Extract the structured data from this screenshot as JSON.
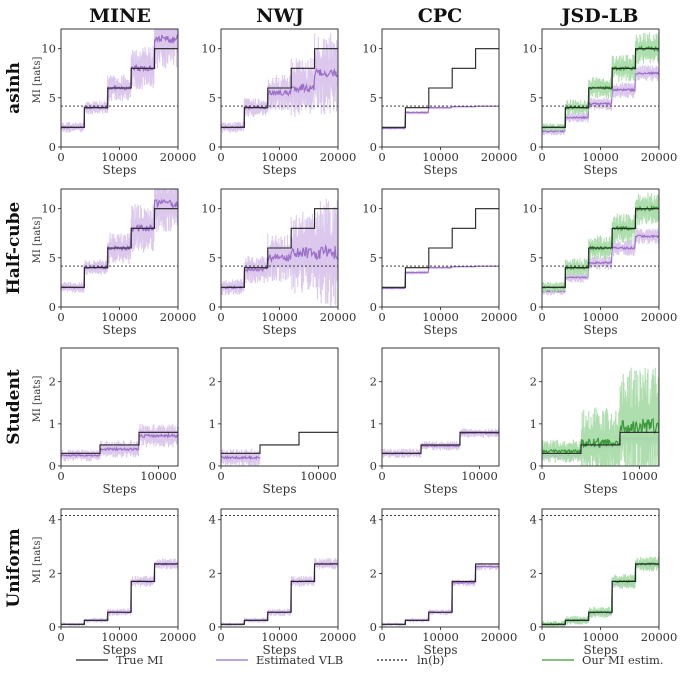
{
  "colors": {
    "true_mi": "#222222",
    "vlb": "#9b6fc7",
    "vlb_band": "#d9c4ec",
    "our": "#3a9a3a",
    "our_band": "#a9dca9",
    "ln_b": "#222222"
  },
  "columns": [
    "MINE",
    "NWJ",
    "CPC",
    "JSD-LB"
  ],
  "rows": [
    "asinh",
    "Half-cube",
    "Student",
    "Uniform"
  ],
  "legend": [
    {
      "key": "true_mi",
      "label": "True MI",
      "style": "solid"
    },
    {
      "key": "vlb",
      "label": "Estimated VLB",
      "style": "solid"
    },
    {
      "key": "ln_b",
      "label": "ln(b)",
      "style": "dashed"
    },
    {
      "key": "our",
      "label": "Our MI estim.",
      "style": "solid"
    }
  ],
  "chart_data": [
    {
      "row": "asinh",
      "type": "line",
      "xlabel": "Steps",
      "ylabel": "MI [nats]",
      "xlim": [
        0,
        20000
      ],
      "ylim": [
        0,
        12
      ],
      "xticks": [
        0,
        10000,
        20000
      ],
      "yticks": [
        0,
        5,
        10
      ],
      "true_mi_steps": [
        2,
        4,
        6,
        8,
        10
      ],
      "ln_b": 4.16,
      "panels": [
        {
          "column": "MINE",
          "vlb": [
            2.0,
            4.0,
            6.0,
            8.0,
            11.0
          ],
          "noise": [
            0.4,
            0.5,
            1.0,
            1.6,
            2.2
          ]
        },
        {
          "column": "NWJ",
          "vlb": [
            2.0,
            4.0,
            5.5,
            6.0,
            7.5
          ],
          "noise": [
            0.4,
            0.7,
            1.4,
            2.2,
            3.0
          ]
        },
        {
          "column": "CPC",
          "vlb": [
            1.9,
            3.5,
            4.0,
            4.1,
            4.15
          ],
          "noise": [
            0.1,
            0.15,
            0.1,
            0.05,
            0.05
          ]
        },
        {
          "column": "JSD-LB",
          "vlb": [
            1.6,
            3.0,
            4.4,
            5.8,
            7.5
          ],
          "noise": [
            0.3,
            0.4,
            0.5,
            0.6,
            0.6
          ],
          "our": [
            2.0,
            4.0,
            6.0,
            8.0,
            10.0
          ],
          "our_noise": [
            0.3,
            0.6,
            0.8,
            1.0,
            1.2
          ]
        }
      ]
    },
    {
      "row": "Half-cube",
      "type": "line",
      "xlabel": "Steps",
      "ylabel": "MI [nats]",
      "xlim": [
        0,
        20000
      ],
      "ylim": [
        0,
        12
      ],
      "xticks": [
        0,
        10000,
        20000
      ],
      "yticks": [
        0,
        5,
        10
      ],
      "true_mi_steps": [
        2,
        4,
        6,
        8,
        10
      ],
      "ln_b": 4.16,
      "panels": [
        {
          "column": "MINE",
          "vlb": [
            2.0,
            4.0,
            6.0,
            8.0,
            10.5
          ],
          "noise": [
            0.4,
            0.6,
            1.2,
            1.8,
            2.2
          ]
        },
        {
          "column": "NWJ",
          "vlb": [
            2.0,
            3.8,
            5.0,
            5.5,
            5.5
          ],
          "noise": [
            0.6,
            1.0,
            1.8,
            3.0,
            4.0
          ]
        },
        {
          "column": "CPC",
          "vlb": [
            1.9,
            3.5,
            4.0,
            4.1,
            4.15
          ],
          "noise": [
            0.1,
            0.15,
            0.1,
            0.05,
            0.05
          ]
        },
        {
          "column": "JSD-LB",
          "vlb": [
            1.6,
            3.0,
            4.5,
            6.0,
            7.2
          ],
          "noise": [
            0.3,
            0.4,
            0.5,
            0.6,
            0.6
          ],
          "our": [
            2.0,
            4.0,
            6.0,
            8.0,
            10.0
          ],
          "our_noise": [
            0.4,
            0.7,
            0.9,
            1.1,
            1.2
          ]
        }
      ]
    },
    {
      "row": "Student",
      "type": "line",
      "xlabel": "Steps",
      "ylabel": "MI [nats]",
      "xlim": [
        0,
        12000
      ],
      "ylim": [
        0,
        2.8
      ],
      "xticks": [
        0,
        10000
      ],
      "yticks": [
        0,
        1,
        2
      ],
      "true_mi_steps": [
        0.3,
        0.5,
        0.8
      ],
      "ln_b": null,
      "panels": [
        {
          "column": "MINE",
          "vlb": [
            0.25,
            0.4,
            0.72
          ],
          "noise": [
            0.1,
            0.15,
            0.2
          ]
        },
        {
          "column": "NWJ",
          "vlb": [
            0.2,
            null,
            null
          ],
          "noise": [
            0.15,
            0,
            0
          ]
        },
        {
          "column": "CPC",
          "vlb": [
            0.3,
            0.48,
            0.78
          ],
          "noise": [
            0.08,
            0.08,
            0.08
          ]
        },
        {
          "column": "JSD-LB",
          "vlb": [
            0.25,
            0.45,
            0.65
          ],
          "noise": [
            0.08,
            0.08,
            0.1
          ],
          "our": [
            0.35,
            0.55,
            0.95
          ],
          "our_noise": [
            0.2,
            0.6,
            1.0
          ]
        }
      ]
    },
    {
      "row": "Uniform",
      "type": "line",
      "xlabel": "Steps",
      "ylabel": "MI [nats]",
      "xlim": [
        0,
        20000
      ],
      "ylim": [
        0,
        4.4
      ],
      "xticks": [
        0,
        10000,
        20000
      ],
      "yticks": [
        0,
        2,
        4
      ],
      "true_mi_steps": [
        0.1,
        0.25,
        0.55,
        1.7,
        2.35
      ],
      "ln_b": 4.16,
      "panels": [
        {
          "column": "MINE",
          "vlb": [
            0.1,
            0.25,
            0.55,
            1.7,
            2.35
          ],
          "noise": [
            0.05,
            0.07,
            0.1,
            0.15,
            0.15
          ]
        },
        {
          "column": "NWJ",
          "vlb": [
            0.1,
            0.25,
            0.55,
            1.7,
            2.35
          ],
          "noise": [
            0.05,
            0.07,
            0.1,
            0.15,
            0.15
          ]
        },
        {
          "column": "CPC",
          "vlb": [
            0.1,
            0.25,
            0.55,
            1.65,
            2.25
          ],
          "noise": [
            0.05,
            0.06,
            0.08,
            0.1,
            0.1
          ]
        },
        {
          "column": "JSD-LB",
          "vlb": [
            0.08,
            0.22,
            0.5,
            1.6,
            2.3
          ],
          "noise": [
            0.05,
            0.06,
            0.08,
            0.1,
            0.1
          ],
          "our": [
            0.1,
            0.25,
            0.55,
            1.7,
            2.35
          ],
          "our_noise": [
            0.1,
            0.12,
            0.15,
            0.2,
            0.2
          ]
        }
      ]
    }
  ]
}
